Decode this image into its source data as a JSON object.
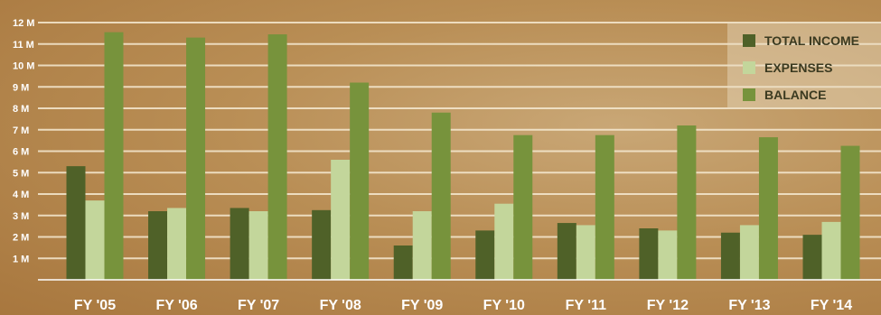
{
  "chart_data": {
    "type": "bar",
    "categories": [
      "FY '05",
      "FY '06",
      "FY '07",
      "FY '08",
      "FY '09",
      "FY '10",
      "FY '11",
      "FY '12",
      "FY '13",
      "FY '14"
    ],
    "series": [
      {
        "name": "TOTAL INCOME",
        "color": "#4f6128",
        "values": [
          5.3,
          3.2,
          3.35,
          3.25,
          1.6,
          2.3,
          2.65,
          2.4,
          2.2,
          2.1
        ]
      },
      {
        "name": "EXPENSES",
        "color": "#c3d69b",
        "values": [
          3.7,
          3.35,
          3.2,
          5.6,
          3.2,
          3.55,
          2.55,
          2.3,
          2.55,
          2.7
        ]
      },
      {
        "name": "BALANCE",
        "color": "#77933c",
        "values": [
          11.55,
          11.3,
          11.45,
          9.2,
          7.8,
          6.75,
          6.75,
          7.2,
          6.65,
          6.25
        ]
      }
    ],
    "yticks": [
      "1 M",
      "2 M",
      "3 M",
      "4 M",
      "5 M",
      "6 M",
      "7 M",
      "8 M",
      "9 M",
      "10 M",
      "11 M",
      "12 M"
    ],
    "ylim": [
      0,
      12
    ],
    "grid": true,
    "legend_position": "top-right"
  }
}
